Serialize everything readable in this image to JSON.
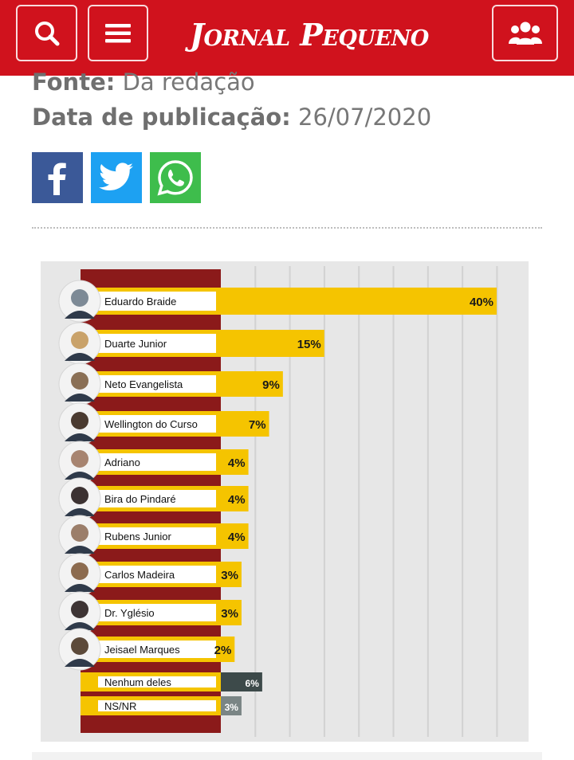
{
  "header": {
    "logo_text": "Jornal Pequeno",
    "brand_color": "#d0121d",
    "buttons": [
      "search-icon",
      "menu-icon",
      "users-icon"
    ]
  },
  "article_meta": {
    "source_label": "Fonte:",
    "source_value": "Da redação",
    "date_label": "Data de publicação:",
    "date_value": "26/07/2020"
  },
  "share": {
    "icons": [
      "facebook-icon",
      "twitter-icon",
      "whatsapp-icon"
    ]
  },
  "chart_data": {
    "type": "bar",
    "orientation": "horizontal",
    "categories": [
      "Eduardo Braide",
      "Duarte Junior",
      "Neto Evangelista",
      "Wellington do Curso",
      "Adriano",
      "Bira do Pindaré",
      "Rubens Junior",
      "Carlos Madeira",
      "Dr. Yglésio",
      "Jeisael Marques",
      "Nenhum deles",
      "NS/NR"
    ],
    "values": [
      40,
      15,
      9,
      7,
      4,
      4,
      4,
      3,
      3,
      2,
      6,
      3
    ],
    "value_labels": [
      "40%",
      "15%",
      "9%",
      "7%",
      "4%",
      "4%",
      "4%",
      "3%",
      "3%",
      "2%",
      "6%",
      "3%"
    ],
    "candidate_color": "#f5c400",
    "other_colors": [
      "#3d4a4a",
      "#7a8585"
    ],
    "band_color": "#8b1a1a",
    "grid": true,
    "xlim": [
      0,
      40
    ]
  }
}
